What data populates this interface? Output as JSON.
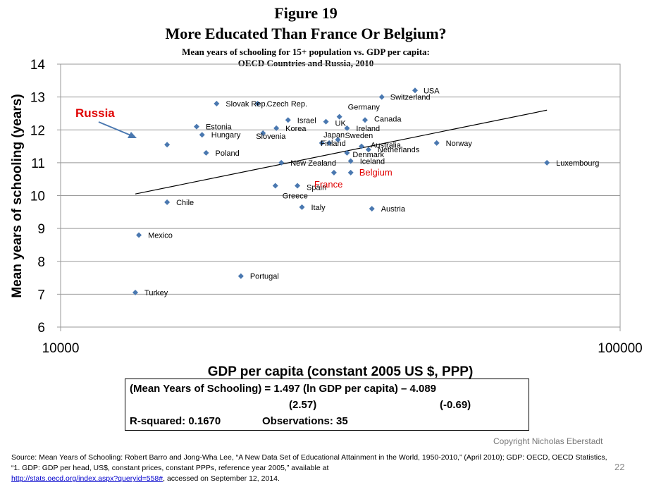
{
  "figure_number": "Figure 19",
  "figure_title": "More Educated Than France Or Belgium?",
  "figure_subtitle_1": "Mean years of schooling  for 15+ population vs. GDP per capita:",
  "figure_subtitle_2": "OECD Countries and Russia, 2010",
  "chart_data": {
    "type": "scatter",
    "xlabel": "GDP per capita (constant 2005 US $, PPP)",
    "ylabel": "Mean years of schooling (years)",
    "x_scale": "log",
    "xlim": [
      10000,
      100000
    ],
    "ylim": [
      6,
      14
    ],
    "x_ticks": [
      10000,
      100000
    ],
    "x_tick_labels": [
      "10000",
      "100000"
    ],
    "y_ticks": [
      6,
      7,
      8,
      9,
      10,
      11,
      12,
      13,
      14
    ],
    "grid": "horizontal",
    "marker_color": "#4a78b0",
    "highlight_color": "#e00000",
    "points": [
      {
        "label": "USA",
        "x": 43000,
        "y": 13.2,
        "highlight": false
      },
      {
        "label": "Switzerland",
        "x": 37500,
        "y": 13.0,
        "highlight": false
      },
      {
        "label": "Slovak Rep.",
        "x": 19000,
        "y": 12.8,
        "highlight": false
      },
      {
        "label": "Czech Rep.",
        "x": 22500,
        "y": 12.8,
        "highlight": false
      },
      {
        "label": "Germany",
        "x": 31500,
        "y": 12.4,
        "highlight": false
      },
      {
        "label": "Israel",
        "x": 25500,
        "y": 12.3,
        "highlight": false
      },
      {
        "label": "UK",
        "x": 29800,
        "y": 12.25,
        "highlight": false
      },
      {
        "label": "Canada",
        "x": 35000,
        "y": 12.3,
        "highlight": false
      },
      {
        "label": "Ireland",
        "x": 32500,
        "y": 12.05,
        "highlight": false
      },
      {
        "label": "Estonia",
        "x": 17500,
        "y": 12.1,
        "highlight": false
      },
      {
        "label": "Korea",
        "x": 24300,
        "y": 12.05,
        "highlight": false
      },
      {
        "label": "Hungary",
        "x": 17900,
        "y": 11.85,
        "highlight": false
      },
      {
        "label": "Slovenia",
        "x": 23000,
        "y": 11.9,
        "highlight": false
      },
      {
        "label": "Japan",
        "x": 30200,
        "y": 11.6,
        "highlight": false
      },
      {
        "label": "Sweden",
        "x": 31300,
        "y": 11.7,
        "highlight": false
      },
      {
        "label": "Finland",
        "x": 29300,
        "y": 11.6,
        "highlight": false
      },
      {
        "label": "Australia",
        "x": 34500,
        "y": 11.5,
        "highlight": false
      },
      {
        "label": "Netherlands",
        "x": 35500,
        "y": 11.4,
        "highlight": false
      },
      {
        "label": "Norway",
        "x": 47000,
        "y": 11.6,
        "highlight": false
      },
      {
        "label": "Russia",
        "x": 15500,
        "y": 11.55,
        "highlight": true
      },
      {
        "label": "Poland",
        "x": 18200,
        "y": 11.3,
        "highlight": false
      },
      {
        "label": "Denmark",
        "x": 32500,
        "y": 11.3,
        "highlight": false
      },
      {
        "label": "Iceland",
        "x": 33000,
        "y": 11.05,
        "highlight": false
      },
      {
        "label": "New Zealand",
        "x": 24800,
        "y": 11.0,
        "highlight": false
      },
      {
        "label": "Luxembourg",
        "x": 74000,
        "y": 11.0,
        "highlight": false
      },
      {
        "label": "Belgium",
        "x": 33000,
        "y": 10.7,
        "highlight": false
      },
      {
        "label": "France",
        "x": 30800,
        "y": 10.7,
        "highlight": false
      },
      {
        "label": "Spain",
        "x": 26500,
        "y": 10.3,
        "highlight": false
      },
      {
        "label": "Greece",
        "x": 24200,
        "y": 10.3,
        "highlight": false
      },
      {
        "label": "Chile",
        "x": 15500,
        "y": 9.8,
        "highlight": false
      },
      {
        "label": "Italy",
        "x": 27000,
        "y": 9.65,
        "highlight": false
      },
      {
        "label": "Austria",
        "x": 36000,
        "y": 9.6,
        "highlight": false
      },
      {
        "label": "Mexico",
        "x": 13800,
        "y": 8.8,
        "highlight": false
      },
      {
        "label": "Portugal",
        "x": 21000,
        "y": 7.55,
        "highlight": false
      },
      {
        "label": "Turkey",
        "x": 13600,
        "y": 7.05,
        "highlight": false
      }
    ],
    "trendline": {
      "x": [
        13600,
        74000
      ],
      "y": [
        10.05,
        12.6
      ]
    },
    "annotation_russia": "Russia",
    "annotation_france": "France",
    "annotation_belgium": "Belgium"
  },
  "regression": {
    "equation": "(Mean Years of Schooling) = 1.497 (ln GDP per capita) – 4.089",
    "se_1": "(2.57)",
    "se_2": "(-0.69)",
    "r_squared": "R-squared: 0.1670",
    "observations": "Observations: 35"
  },
  "copyright": "Copyright Nicholas Eberstadt",
  "page_number": "22",
  "source_text": "Source: Mean Years of Schooling: Robert Barro and Jong-Wha Lee, “A New Data Set of Educational Attainment in the World, 1950-2010,” (April 2010); GDP: OECD, OECD Statistics, “1. GDP: GDP per head, US$, constant prices, constant PPPs, reference year 2005,” available at",
  "source_link": "http://stats.oecd.org/index.aspx?queryid=558#",
  "source_tail": ", accessed on September 12, 2014."
}
